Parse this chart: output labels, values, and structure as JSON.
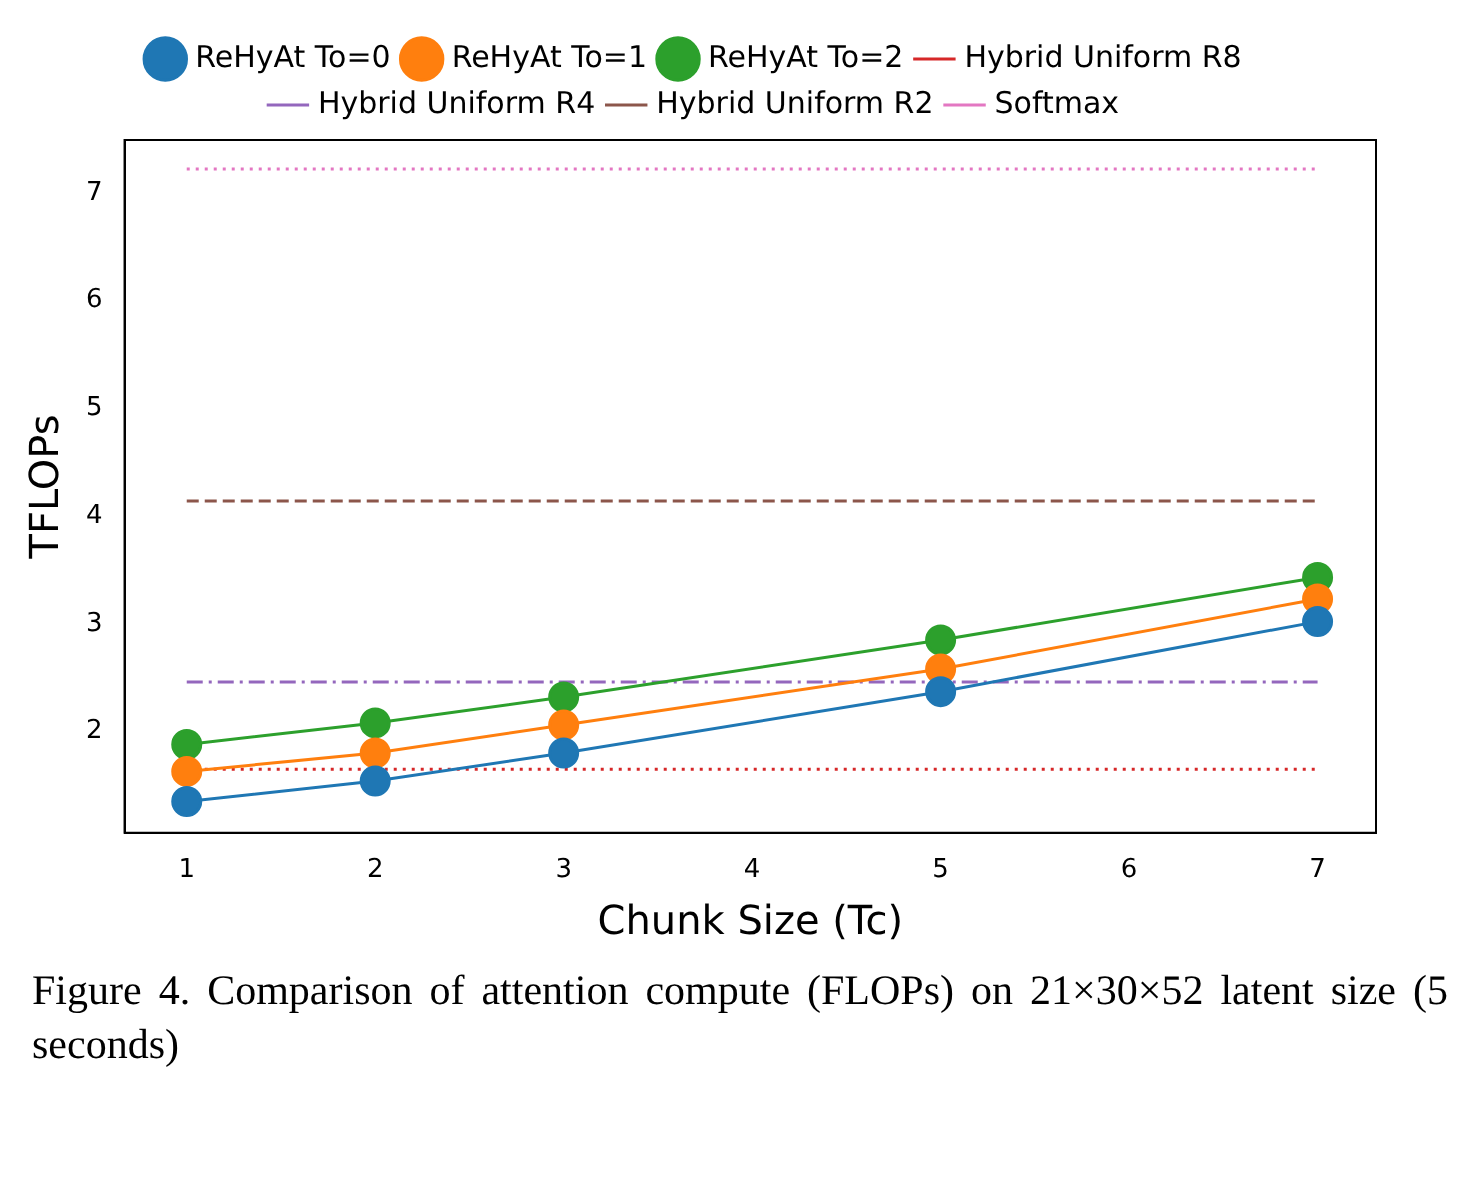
{
  "chart_data": {
    "type": "line",
    "xlabel": "Chunk Size (Tc)",
    "ylabel": "TFLOPs",
    "xlim": [
      0.67,
      7.31
    ],
    "ylim": [
      1.06,
      7.49
    ],
    "xticks": [
      1,
      2,
      3,
      4,
      5,
      6,
      7
    ],
    "yticks": [
      2,
      3,
      4,
      5,
      6,
      7
    ],
    "grid": false,
    "legend": "top",
    "series": [
      {
        "name": "ReHyAt To=0",
        "color": "#1f77b4",
        "x": [
          1,
          2,
          3,
          5,
          7
        ],
        "values": [
          1.35,
          1.54,
          1.8,
          2.37,
          3.02
        ],
        "marker": "circle",
        "line_style": "solid"
      },
      {
        "name": "ReHyAt To=1",
        "color": "#ff7f0e",
        "x": [
          1,
          2,
          3,
          5,
          7
        ],
        "values": [
          1.63,
          1.8,
          2.06,
          2.58,
          3.23
        ],
        "marker": "circle",
        "line_style": "solid"
      },
      {
        "name": "ReHyAt To=2",
        "color": "#2ca02c",
        "x": [
          1,
          2,
          3,
          5,
          7
        ],
        "values": [
          1.88,
          2.08,
          2.32,
          2.85,
          3.43
        ],
        "marker": "circle",
        "line_style": "solid"
      },
      {
        "name": "Hybrid Uniform R8",
        "color": "#d62728",
        "x": [
          1,
          7
        ],
        "values": [
          1.65,
          1.65
        ],
        "marker": "none",
        "line_style": "dotted"
      },
      {
        "name": "Hybrid Uniform R4",
        "color": "#9467bd",
        "x": [
          1,
          7
        ],
        "values": [
          2.46,
          2.46
        ],
        "marker": "none",
        "line_style": "dashdot"
      },
      {
        "name": "Hybrid Uniform R2",
        "color": "#8c564b",
        "x": [
          1,
          7
        ],
        "values": [
          4.14,
          4.14
        ],
        "marker": "none",
        "line_style": "dashed"
      },
      {
        "name": "Softmax",
        "color": "#e377c2",
        "x": [
          1,
          7
        ],
        "values": [
          7.22,
          7.22
        ],
        "marker": "none",
        "line_style": "dotted"
      }
    ],
    "annotations": [
      "Figure 4.    Comparison of attention compute (FLOPs) on 21×30×52 latent size (5 seconds)"
    ]
  }
}
